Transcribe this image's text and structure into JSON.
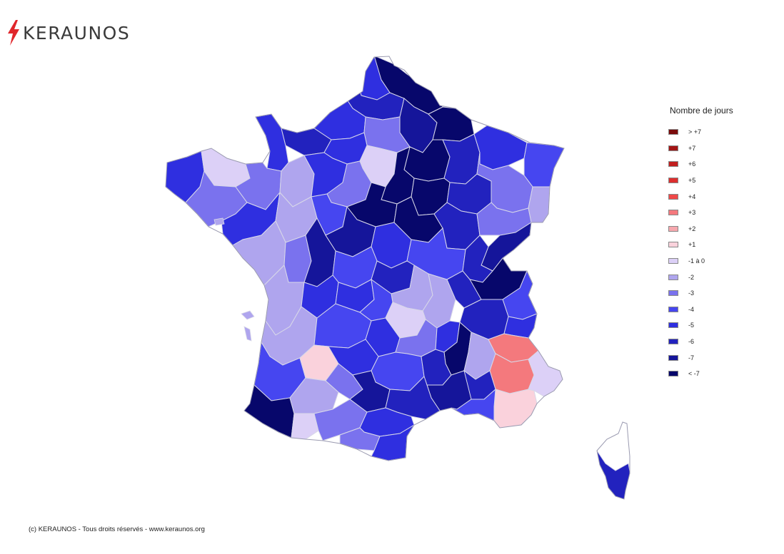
{
  "brand": {
    "name": "KERAUNOS",
    "accent": "#e0262b"
  },
  "legend": {
    "title": "Nombre de jours",
    "items": [
      {
        "label": "> +7",
        "color": "#7a0b0b"
      },
      {
        "label": "+7",
        "color": "#a31515"
      },
      {
        "label": "+6",
        "color": "#c11f1f"
      },
      {
        "label": "+5",
        "color": "#dd2e2e"
      },
      {
        "label": "+4",
        "color": "#f04848"
      },
      {
        "label": "+3",
        "color": "#f4797d"
      },
      {
        "label": "+2",
        "color": "#f7a8ae"
      },
      {
        "label": "+1",
        "color": "#fad2dc"
      },
      {
        "label": "-1 à 0",
        "color": "#dcd0f7"
      },
      {
        "label": "-2",
        "color": "#afa5ee"
      },
      {
        "label": "-3",
        "color": "#7a72ee"
      },
      {
        "label": "-4",
        "color": "#4646f0"
      },
      {
        "label": "-5",
        "color": "#2f2fe0"
      },
      {
        "label": "-6",
        "color": "#2222be"
      },
      {
        "label": "-7",
        "color": "#15159a"
      },
      {
        "label": "< -7",
        "color": "#07076b"
      }
    ]
  },
  "map": {
    "regions": [
      {
        "name": "Nord",
        "color": "#07076b"
      },
      {
        "name": "Pas-de-Calais",
        "color": "#2f2fe0"
      },
      {
        "name": "Somme",
        "color": "#2222be"
      },
      {
        "name": "Aisne",
        "color": "#15159a"
      },
      {
        "name": "Ardennes",
        "color": "#07076b"
      },
      {
        "name": "Seine-Maritime",
        "color": "#2f2fe0"
      },
      {
        "name": "Oise",
        "color": "#7a72ee"
      },
      {
        "name": "Marne",
        "color": "#07076b"
      },
      {
        "name": "Meuse",
        "color": "#2222be"
      },
      {
        "name": "Moselle",
        "color": "#2f2fe0"
      },
      {
        "name": "Bas-Rhin",
        "color": "#4646f0"
      },
      {
        "name": "Manche",
        "color": "#2f2fe0"
      },
      {
        "name": "Calvados",
        "color": "#2222be"
      },
      {
        "name": "Eure",
        "color": "#2f2fe0"
      },
      {
        "name": "Paris",
        "color": "#dcd0f7"
      },
      {
        "name": "Seine-et-Marne",
        "color": "#07076b"
      },
      {
        "name": "Aube",
        "color": "#07076b"
      },
      {
        "name": "Haute-Marne",
        "color": "#2222be"
      },
      {
        "name": "Vosges",
        "color": "#7a72ee"
      },
      {
        "name": "Haut-Rhin",
        "color": "#afa5ee"
      },
      {
        "name": "Finistere",
        "color": "#2f2fe0"
      },
      {
        "name": "Cotes-d-Armor",
        "color": "#dcd0f7"
      },
      {
        "name": "Morbihan",
        "color": "#7a72ee"
      },
      {
        "name": "Ille-et-Vilaine",
        "color": "#7a72ee"
      },
      {
        "name": "Mayenne",
        "color": "#afa5ee"
      },
      {
        "name": "Orne",
        "color": "#2f2fe0"
      },
      {
        "name": "Eure-et-Loir",
        "color": "#7a72ee"
      },
      {
        "name": "Loiret",
        "color": "#07076b"
      },
      {
        "name": "Yonne",
        "color": "#07076b"
      },
      {
        "name": "Cote-d-Or",
        "color": "#2222be"
      },
      {
        "name": "Haute-Saone",
        "color": "#7a72ee"
      },
      {
        "name": "Doubs",
        "color": "#15159a"
      },
      {
        "name": "Loire-Atlantique",
        "color": "#2f2fe0"
      },
      {
        "name": "Maine-et-Loire",
        "color": "#afa5ee"
      },
      {
        "name": "Sarthe",
        "color": "#4646f0"
      },
      {
        "name": "Loir-et-Cher",
        "color": "#15159a"
      },
      {
        "name": "Nievre",
        "color": "#2f2fe0"
      },
      {
        "name": "Saone-et-Loire",
        "color": "#4646f0"
      },
      {
        "name": "Jura",
        "color": "#2222be"
      },
      {
        "name": "Vendee",
        "color": "#afa5ee"
      },
      {
        "name": "Deux-Sevres",
        "color": "#7a72ee"
      },
      {
        "name": "Vienne",
        "color": "#15159a"
      },
      {
        "name": "Indre",
        "color": "#4646f0"
      },
      {
        "name": "Cher",
        "color": "#2222be"
      },
      {
        "name": "Allier",
        "color": "#afa5ee"
      },
      {
        "name": "Loire",
        "color": "#afa5ee"
      },
      {
        "name": "Rhone",
        "color": "#2222be"
      },
      {
        "name": "Ain",
        "color": "#07076b"
      },
      {
        "name": "Haute-Savoie",
        "color": "#4646f0"
      },
      {
        "name": "Charente-Maritime",
        "color": "#afa5ee"
      },
      {
        "name": "Charente",
        "color": "#2f2fe0"
      },
      {
        "name": "Haute-Vienne",
        "color": "#2f2fe0"
      },
      {
        "name": "Creuse",
        "color": "#4646f0"
      },
      {
        "name": "Puy-de-Dome",
        "color": "#dcd0f7"
      },
      {
        "name": "Isere",
        "color": "#2222be"
      },
      {
        "name": "Savoie",
        "color": "#2f2fe0"
      },
      {
        "name": "Gironde",
        "color": "#afa5ee"
      },
      {
        "name": "Dordogne",
        "color": "#4646f0"
      },
      {
        "name": "Correze",
        "color": "#2f2fe0"
      },
      {
        "name": "Cantal",
        "color": "#7a72ee"
      },
      {
        "name": "Haute-Loire",
        "color": "#2f2fe0"
      },
      {
        "name": "Ardeche",
        "color": "#07076b"
      },
      {
        "name": "Drome",
        "color": "#afa5ee"
      },
      {
        "name": "Hautes-Alpes",
        "color": "#f4797d"
      },
      {
        "name": "Alpes-de-Haute-Provence",
        "color": "#f4797d"
      },
      {
        "name": "Alpes-Maritimes",
        "color": "#dcd0f7"
      },
      {
        "name": "Landes",
        "color": "#4646f0"
      },
      {
        "name": "Lot-et-Garonne",
        "color": "#fad2dc"
      },
      {
        "name": "Lot",
        "color": "#2f2fe0"
      },
      {
        "name": "Aveyron",
        "color": "#4646f0"
      },
      {
        "name": "Lozere",
        "color": "#2222be"
      },
      {
        "name": "Gard",
        "color": "#15159a"
      },
      {
        "name": "Vaucluse",
        "color": "#2222be"
      },
      {
        "name": "Var",
        "color": "#fad2dc"
      },
      {
        "name": "Bouches-du-Rhone",
        "color": "#4646f0"
      },
      {
        "name": "Pyrenees-Atlantiques",
        "color": "#07076b"
      },
      {
        "name": "Gers",
        "color": "#afa5ee"
      },
      {
        "name": "Tarn-et-Garonne",
        "color": "#7a72ee"
      },
      {
        "name": "Tarn",
        "color": "#15159a"
      },
      {
        "name": "Herault",
        "color": "#2222be"
      },
      {
        "name": "Hautes-Pyrenees",
        "color": "#dcd0f7"
      },
      {
        "name": "Haute-Garonne",
        "color": "#7a72ee"
      },
      {
        "name": "Aude",
        "color": "#2f2fe0"
      },
      {
        "name": "Ariege",
        "color": "#7a72ee"
      },
      {
        "name": "Pyrenees-Orientales",
        "color": "#2f2fe0"
      },
      {
        "name": "Haute-Corse",
        "color": "#07076b"
      },
      {
        "name": "Corse-du-Sud",
        "color": "#2222be"
      }
    ]
  },
  "footer": {
    "text": "(c) KERAUNOS - Tous droits réservés - www.keraunos.org"
  }
}
